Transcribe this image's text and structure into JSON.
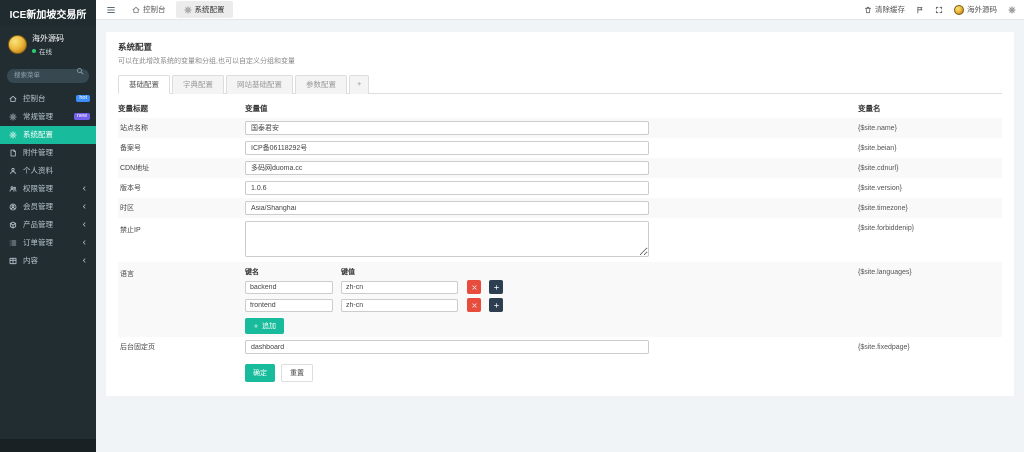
{
  "app": {
    "title": "ICE新加坡交易所"
  },
  "colors": {
    "accent": "#18bc9c",
    "danger": "#e74c3c",
    "dark": "#2c3e50",
    "badge_hot": "#3e8ef7",
    "badge_new": "#7460ee",
    "sidebar_bg": "#222d32"
  },
  "sidebar": {
    "user": {
      "name": "海外源码",
      "status": "在线"
    },
    "search_placeholder": "搜索菜单",
    "search_icon": "search-icon",
    "items": [
      {
        "label": "控制台",
        "icon": "home-icon",
        "badge": "hot",
        "badge_class": "hot"
      },
      {
        "label": "常规管理",
        "icon": "cogs-icon",
        "badge": "new",
        "badge_class": "new"
      },
      {
        "label": "系统配置",
        "icon": "gear-icon",
        "active": true
      },
      {
        "label": "附件管理",
        "icon": "file-icon"
      },
      {
        "label": "个人资料",
        "icon": "user-icon"
      },
      {
        "label": "权限管理",
        "icon": "users-icon",
        "chevron": true
      },
      {
        "label": "会员管理",
        "icon": "user-circle-icon",
        "chevron": true
      },
      {
        "label": "产品管理",
        "icon": "box-icon",
        "chevron": true
      },
      {
        "label": "订单管理",
        "icon": "list-icon",
        "chevron": true
      },
      {
        "label": "内容",
        "icon": "grid-icon",
        "chevron": true
      }
    ]
  },
  "topbar": {
    "menu_icon": "menu-icon",
    "tabs": [
      {
        "label": "控制台",
        "icon": "home-icon"
      },
      {
        "label": "系统配置",
        "icon": "gear-icon",
        "active": true
      }
    ],
    "clear_cache_label": "清除缓存",
    "username": "海外源码",
    "right_icons": [
      "trash-icon",
      "flag-icon",
      "expand-icon",
      "gear-icon"
    ]
  },
  "panel": {
    "title": "系统配置",
    "subtitle": "可以在此增改系统的变量和分组,也可以自定义分组和变量",
    "tabs": [
      {
        "label": "基础配置",
        "active": true
      },
      {
        "label": "字典配置"
      },
      {
        "label": "网站基础配置"
      },
      {
        "label": "参数配置"
      },
      {
        "label": "+",
        "is_add": true
      }
    ],
    "columns": {
      "title": "变量标题",
      "value": "变量值",
      "name": "变量名"
    },
    "rows": [
      {
        "label": "站点名称",
        "type": "input",
        "value": "国泰君安",
        "var": "{$site.name}"
      },
      {
        "label": "备案号",
        "type": "input",
        "value": "ICP备06118292号",
        "var": "{$site.beian}"
      },
      {
        "label": "CDN地址",
        "type": "input",
        "value": "多码网duoma.cc",
        "var": "{$site.cdnurl}"
      },
      {
        "label": "版本号",
        "type": "input",
        "value": "1.0.6",
        "var": "{$site.version}"
      },
      {
        "label": "时区",
        "type": "input",
        "value": "Asia/Shanghai",
        "var": "{$site.timezone}"
      },
      {
        "label": "禁止IP",
        "type": "textarea",
        "value": "",
        "var": "{$site.forbiddenip}"
      },
      {
        "label": "语言",
        "type": "kv",
        "var": "{$site.languages}",
        "kv": {
          "key_header": "键名",
          "value_header": "键值",
          "rows": [
            {
              "key": "backend",
              "value": "zh-cn"
            },
            {
              "key": "frontend",
              "value": "zh-cn"
            }
          ],
          "append_label": "追加"
        }
      },
      {
        "label": "后台固定页",
        "type": "input",
        "value": "dashboard",
        "var": "{$site.fixedpage}"
      }
    ],
    "buttons": {
      "ok": "确定",
      "reset": "重置"
    }
  }
}
